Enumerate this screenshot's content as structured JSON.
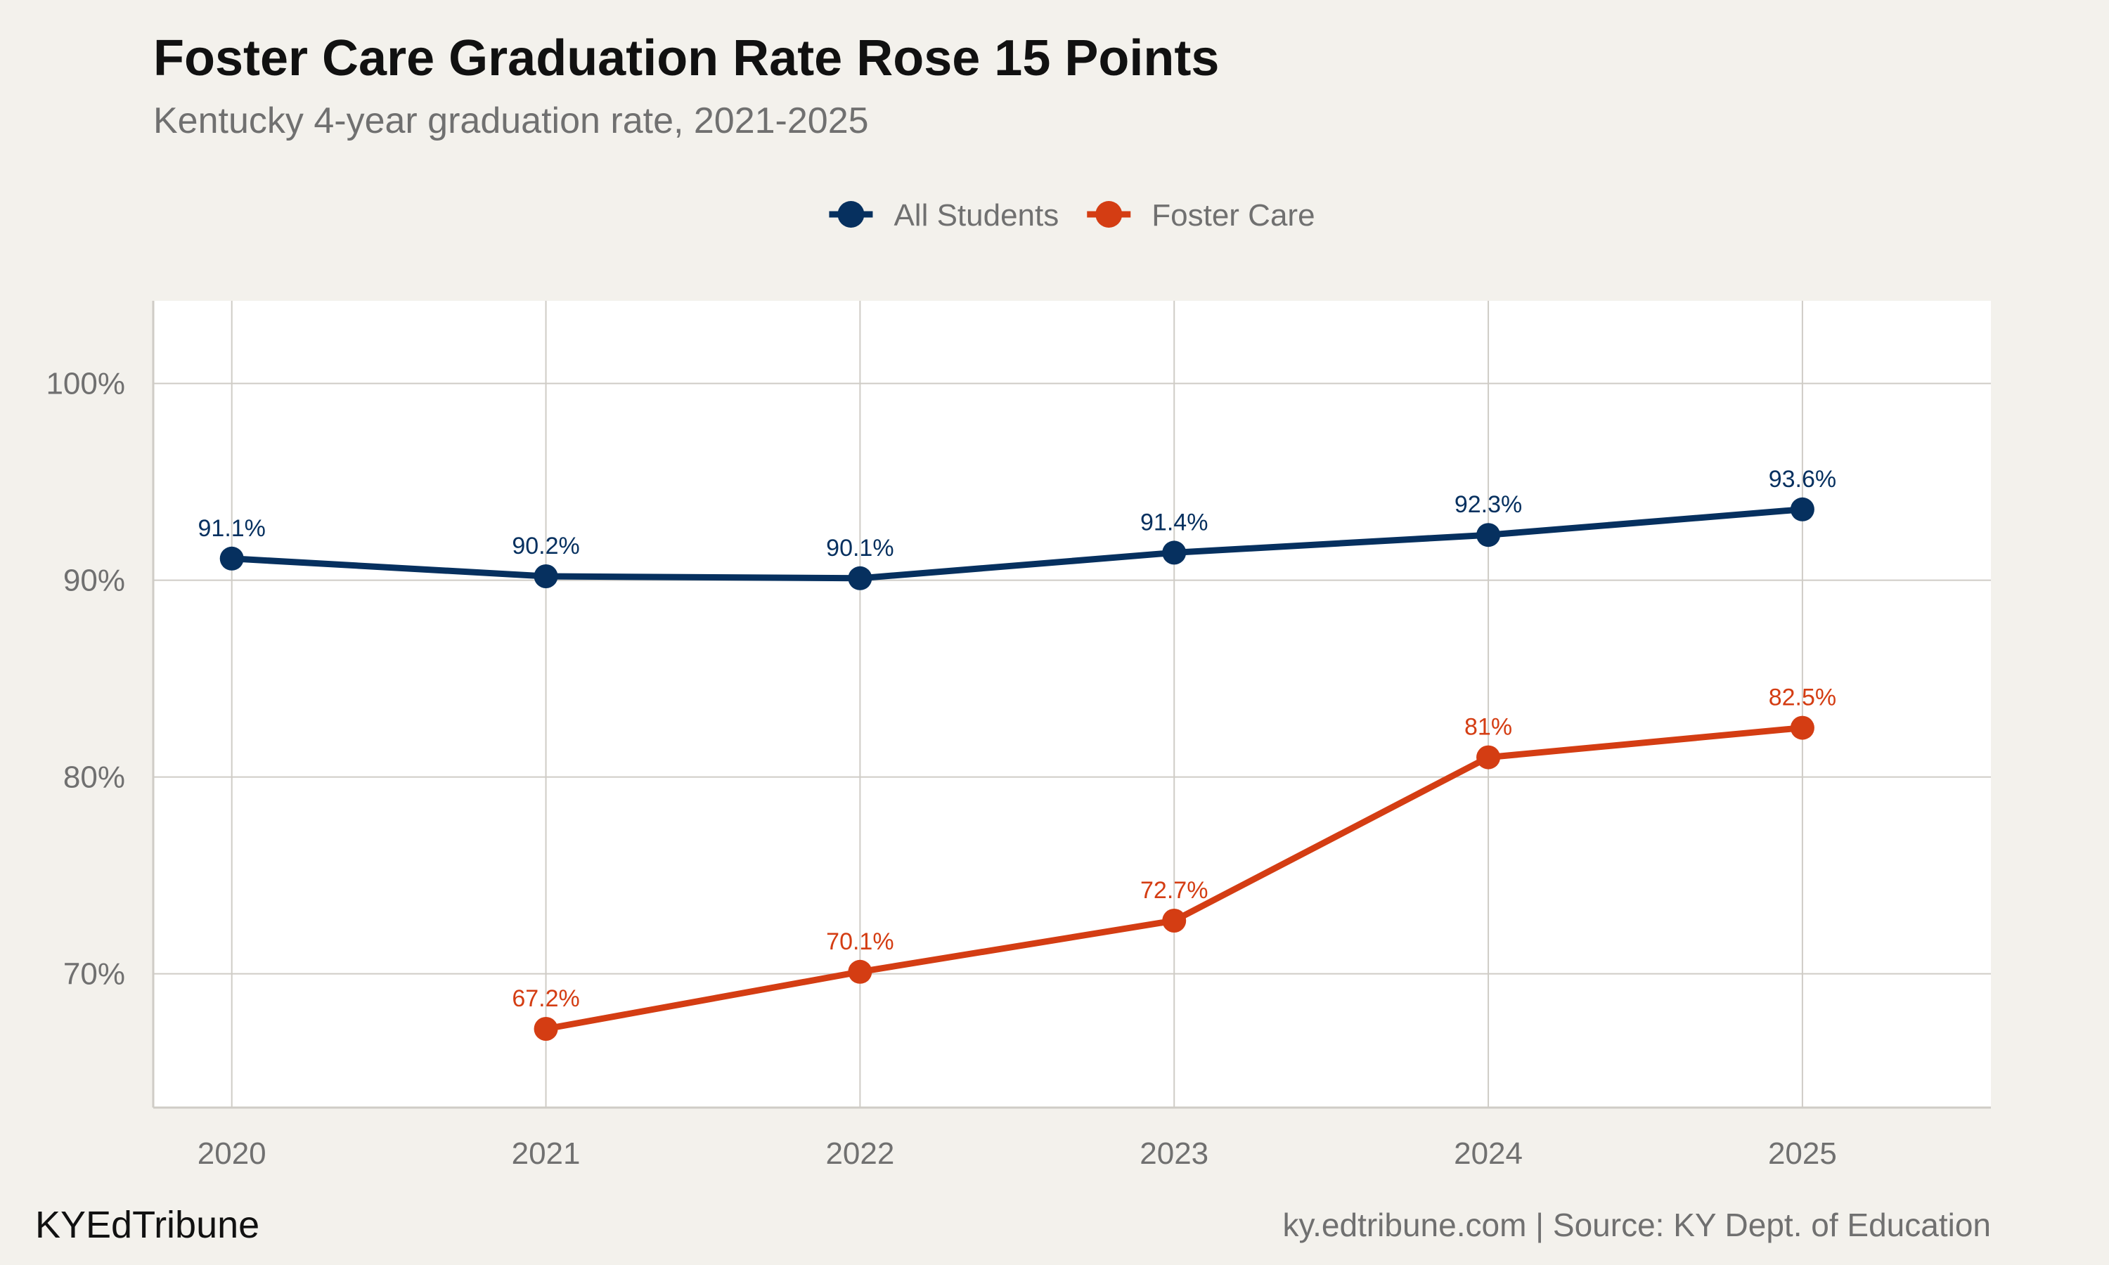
{
  "header": {
    "title": "Foster Care Graduation Rate Rose 15 Points",
    "subtitle": "Kentucky 4-year graduation rate, 2021-2025"
  },
  "footer": {
    "brand": "KYEdTribune",
    "caption": "ky.edtribune.com | Source: KY Dept. of Education"
  },
  "chart_data": {
    "type": "line",
    "title": "Foster Care Graduation Rate Rose 15 Points",
    "subtitle": "Kentucky 4-year graduation rate, 2021-2025",
    "xlabel": "",
    "ylabel": "",
    "x": [
      2020,
      2021,
      2022,
      2023,
      2024,
      2025
    ],
    "x_tick_labels": [
      "2020",
      "2021",
      "2022",
      "2023",
      "2024",
      "2025"
    ],
    "xlim": [
      2019.75,
      2025.6
    ],
    "ylim": [
      63.2,
      104.2
    ],
    "y_ticks": [
      70,
      80,
      90,
      100
    ],
    "y_tick_labels": [
      "70%",
      "80%",
      "90%",
      "100%"
    ],
    "grid": true,
    "legend_position": "top",
    "series": [
      {
        "name": "All Students",
        "color": "#06305f",
        "values": [
          91.1,
          90.2,
          90.1,
          91.4,
          92.3,
          93.6
        ],
        "labels": [
          "91.1%",
          "90.2%",
          "90.1%",
          "91.4%",
          "92.3%",
          "93.6%"
        ]
      },
      {
        "name": "Foster Care",
        "color": "#d43d13",
        "values": [
          null,
          67.2,
          70.1,
          72.7,
          81,
          82.5
        ],
        "labels": [
          null,
          "67.2%",
          "70.1%",
          "72.7%",
          "81%",
          "82.5%"
        ]
      }
    ],
    "colors": {
      "panel_background": "#ffffff",
      "page_background": "#f3f1ec",
      "gridline": "#cfccc6"
    }
  }
}
